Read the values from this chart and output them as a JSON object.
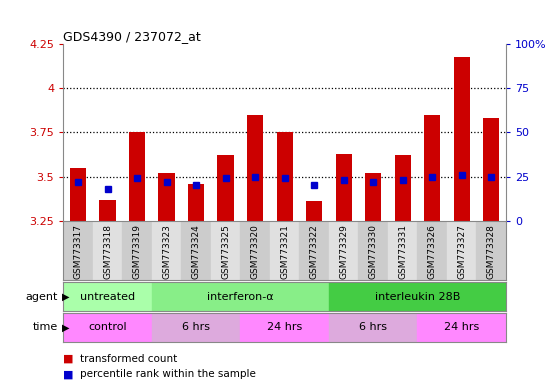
{
  "title": "GDS4390 / 237072_at",
  "samples": [
    "GSM773317",
    "GSM773318",
    "GSM773319",
    "GSM773323",
    "GSM773324",
    "GSM773325",
    "GSM773320",
    "GSM773321",
    "GSM773322",
    "GSM773329",
    "GSM773330",
    "GSM773331",
    "GSM773326",
    "GSM773327",
    "GSM773328"
  ],
  "transformed_count": [
    3.55,
    3.37,
    3.75,
    3.52,
    3.46,
    3.62,
    3.85,
    3.75,
    3.36,
    3.63,
    3.52,
    3.62,
    3.85,
    4.18,
    3.83
  ],
  "percentile_rank": [
    22,
    18,
    24,
    22,
    20,
    24,
    25,
    24,
    20,
    23,
    22,
    23,
    25,
    26,
    25
  ],
  "bar_color": "#cc0000",
  "dot_color": "#0000cc",
  "ymin": 3.25,
  "ymax": 4.25,
  "yticks": [
    3.25,
    3.5,
    3.75,
    4.0,
    4.25
  ],
  "ytick_labels": [
    "3.25",
    "3.5",
    "3.75",
    "4",
    "4.25"
  ],
  "right_yticks": [
    0,
    25,
    50,
    75,
    100
  ],
  "right_ytick_labels": [
    "0",
    "25",
    "50",
    "75",
    "100%"
  ],
  "dotted_lines": [
    3.5,
    3.75,
    4.0
  ],
  "agent_groups": [
    {
      "label": "untreated",
      "start": 0,
      "end": 3,
      "color": "#aaffaa"
    },
    {
      "label": "interferon-α",
      "start": 3,
      "end": 9,
      "color": "#88ee88"
    },
    {
      "label": "interleukin 28B",
      "start": 9,
      "end": 15,
      "color": "#44cc44"
    }
  ],
  "time_groups": [
    {
      "label": "control",
      "start": 0,
      "end": 3,
      "color": "#ff88ff"
    },
    {
      "label": "6 hrs",
      "start": 3,
      "end": 6,
      "color": "#ddaadd"
    },
    {
      "label": "24 hrs",
      "start": 6,
      "end": 9,
      "color": "#ff88ff"
    },
    {
      "label": "6 hrs",
      "start": 9,
      "end": 12,
      "color": "#ddaadd"
    },
    {
      "label": "24 hrs",
      "start": 12,
      "end": 15,
      "color": "#ff88ff"
    }
  ],
  "legend_items": [
    {
      "label": "transformed count",
      "color": "#cc0000"
    },
    {
      "label": "percentile rank within the sample",
      "color": "#0000cc"
    }
  ],
  "bg_color": "#ffffff",
  "plot_bg": "#ffffff",
  "bar_width": 0.55,
  "left_axis_color": "#cc0000",
  "right_axis_color": "#0000cc"
}
